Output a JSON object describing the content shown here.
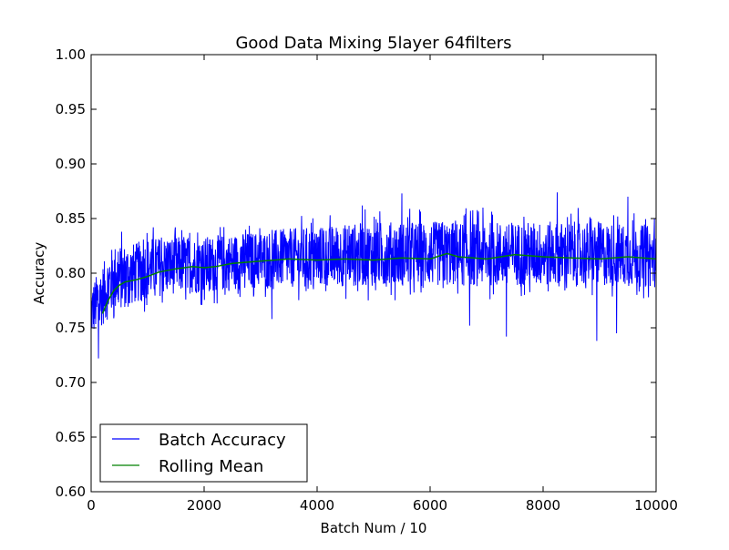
{
  "chart_data": {
    "type": "line",
    "title": "Good Data Mixing 5layer 64filters",
    "xlabel": "Batch Num / 10",
    "ylabel": "Accuracy",
    "xlim": [
      0,
      10000
    ],
    "ylim": [
      0.6,
      1.0
    ],
    "x_ticks": [
      0,
      2000,
      4000,
      6000,
      8000,
      10000
    ],
    "x_tick_labels": [
      "0",
      "2000",
      "4000",
      "6000",
      "8000",
      "10000"
    ],
    "y_ticks": [
      0.6,
      0.65,
      0.7,
      0.75,
      0.8,
      0.85,
      0.9,
      0.95,
      1.0
    ],
    "y_tick_labels": [
      "0.60",
      "0.65",
      "0.70",
      "0.75",
      "0.80",
      "0.85",
      "0.90",
      "0.95",
      "1.00"
    ],
    "grid": false,
    "legend_position": "bottom-left",
    "series": [
      {
        "name": "Batch Accuracy",
        "color": "#0000ff",
        "x_start": 0,
        "x_end": 10000,
        "envelope_x": [
          0,
          100,
          200,
          400,
          600,
          800,
          1000,
          1500,
          2000,
          3000,
          4000,
          5000,
          6000,
          7000,
          8000,
          9000,
          10000
        ],
        "upper": [
          0.8,
          0.81,
          0.82,
          0.84,
          0.84,
          0.84,
          0.845,
          0.845,
          0.845,
          0.85,
          0.855,
          0.86,
          0.86,
          0.86,
          0.86,
          0.86,
          0.855
        ],
        "lower": [
          0.73,
          0.735,
          0.74,
          0.75,
          0.755,
          0.76,
          0.765,
          0.77,
          0.77,
          0.775,
          0.775,
          0.775,
          0.775,
          0.775,
          0.775,
          0.775,
          0.775
        ],
        "spikes": [
          [
            130,
            0.722
          ],
          [
            5500,
            0.873
          ],
          [
            8250,
            0.874
          ],
          [
            7350,
            0.742
          ],
          [
            8950,
            0.738
          ],
          [
            4800,
            0.862
          ],
          [
            9500,
            0.87
          ],
          [
            3200,
            0.758
          ],
          [
            6700,
            0.752
          ],
          [
            9300,
            0.745
          ]
        ]
      },
      {
        "name": "Rolling Mean",
        "color": "#008000",
        "x": [
          200,
          300,
          400,
          500,
          600,
          800,
          1000,
          1200,
          1500,
          1800,
          2000,
          2200,
          2500,
          3000,
          3500,
          4000,
          4500,
          5000,
          5500,
          6000,
          6300,
          6500,
          7000,
          7500,
          8000,
          8500,
          9000,
          9500,
          10000
        ],
        "y": [
          0.763,
          0.775,
          0.784,
          0.789,
          0.792,
          0.794,
          0.797,
          0.801,
          0.804,
          0.806,
          0.805,
          0.806,
          0.809,
          0.811,
          0.813,
          0.812,
          0.813,
          0.812,
          0.814,
          0.813,
          0.818,
          0.815,
          0.813,
          0.817,
          0.815,
          0.814,
          0.813,
          0.815,
          0.813
        ]
      }
    ]
  }
}
